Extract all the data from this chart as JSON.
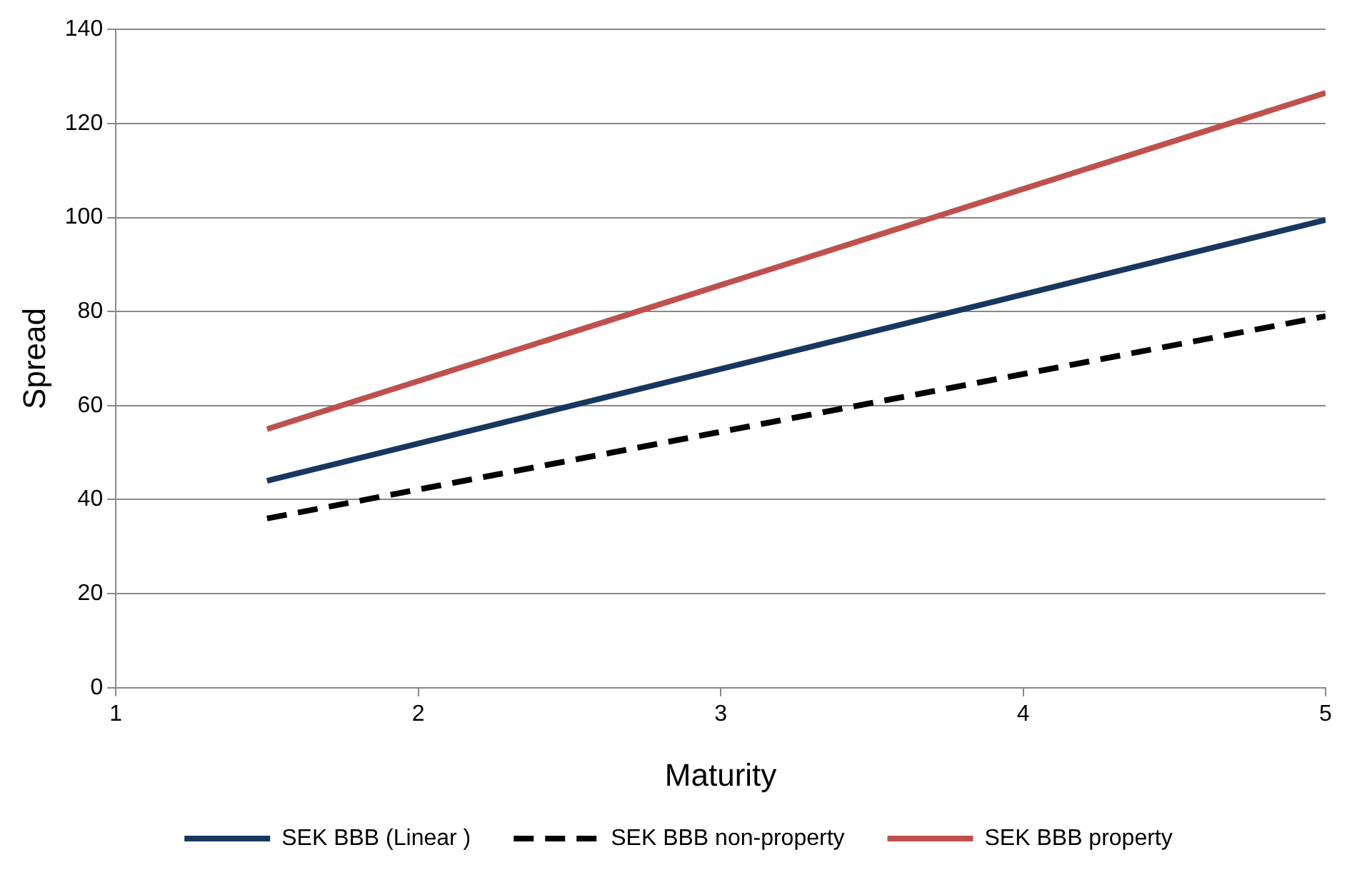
{
  "chart_data": {
    "type": "line",
    "xlabel": "Maturity",
    "ylabel": "Spread",
    "x": [
      1.5,
      5
    ],
    "xlim": [
      1,
      5
    ],
    "xticks": [
      1,
      2,
      3,
      4,
      5
    ],
    "ylim": [
      0,
      140
    ],
    "yticks": [
      0,
      20,
      40,
      60,
      80,
      100,
      120,
      140
    ],
    "grid": "y",
    "legend": "bottom",
    "marker": "none",
    "series": [
      {
        "name": "SEK BBB (Linear )",
        "color": "#17375e",
        "values": [
          44,
          99.5
        ],
        "line_style": "solid"
      },
      {
        "name": "SEK BBB non-property",
        "color": "#000000",
        "values": [
          36,
          79
        ],
        "line_style": "dashed"
      },
      {
        "name": "SEK BBB property",
        "color": "#c0504d",
        "values": [
          55,
          126.5
        ],
        "line_style": "solid"
      }
    ]
  }
}
